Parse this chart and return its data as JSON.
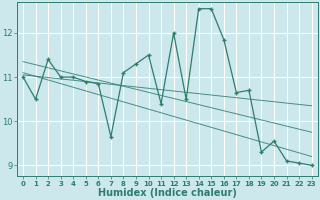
{
  "title": "",
  "xlabel": "Humidex (Indice chaleur)",
  "background_color": "#cce8ec",
  "grid_color": "#f0f0f0",
  "line_color": "#2e7d6e",
  "series1_x": [
    0,
    1,
    2,
    3,
    4,
    5,
    6,
    7,
    8,
    9,
    10,
    11,
    12,
    13,
    14,
    15,
    16,
    17,
    18,
    19,
    20,
    21,
    22,
    23
  ],
  "series1_y": [
    11.0,
    10.5,
    11.4,
    11.0,
    11.0,
    10.9,
    10.85,
    9.65,
    11.1,
    11.3,
    11.5,
    10.4,
    12.0,
    10.5,
    12.55,
    12.55,
    11.85,
    10.65,
    10.7,
    9.3,
    9.55,
    9.1,
    9.05,
    9.0
  ],
  "trend1_x": [
    0,
    23
  ],
  "trend1_y": [
    11.05,
    10.35
  ],
  "trend2_x": [
    0,
    23
  ],
  "trend2_y": [
    11.35,
    9.75
  ],
  "trend3_x": [
    0,
    23
  ],
  "trend3_y": [
    11.1,
    9.2
  ],
  "xlim": [
    -0.5,
    23.5
  ],
  "ylim": [
    8.75,
    12.7
  ],
  "yticks": [
    9,
    10,
    11,
    12
  ],
  "xticks": [
    0,
    1,
    2,
    3,
    4,
    5,
    6,
    7,
    8,
    9,
    10,
    11,
    12,
    13,
    14,
    15,
    16,
    17,
    18,
    19,
    20,
    21,
    22,
    23
  ]
}
